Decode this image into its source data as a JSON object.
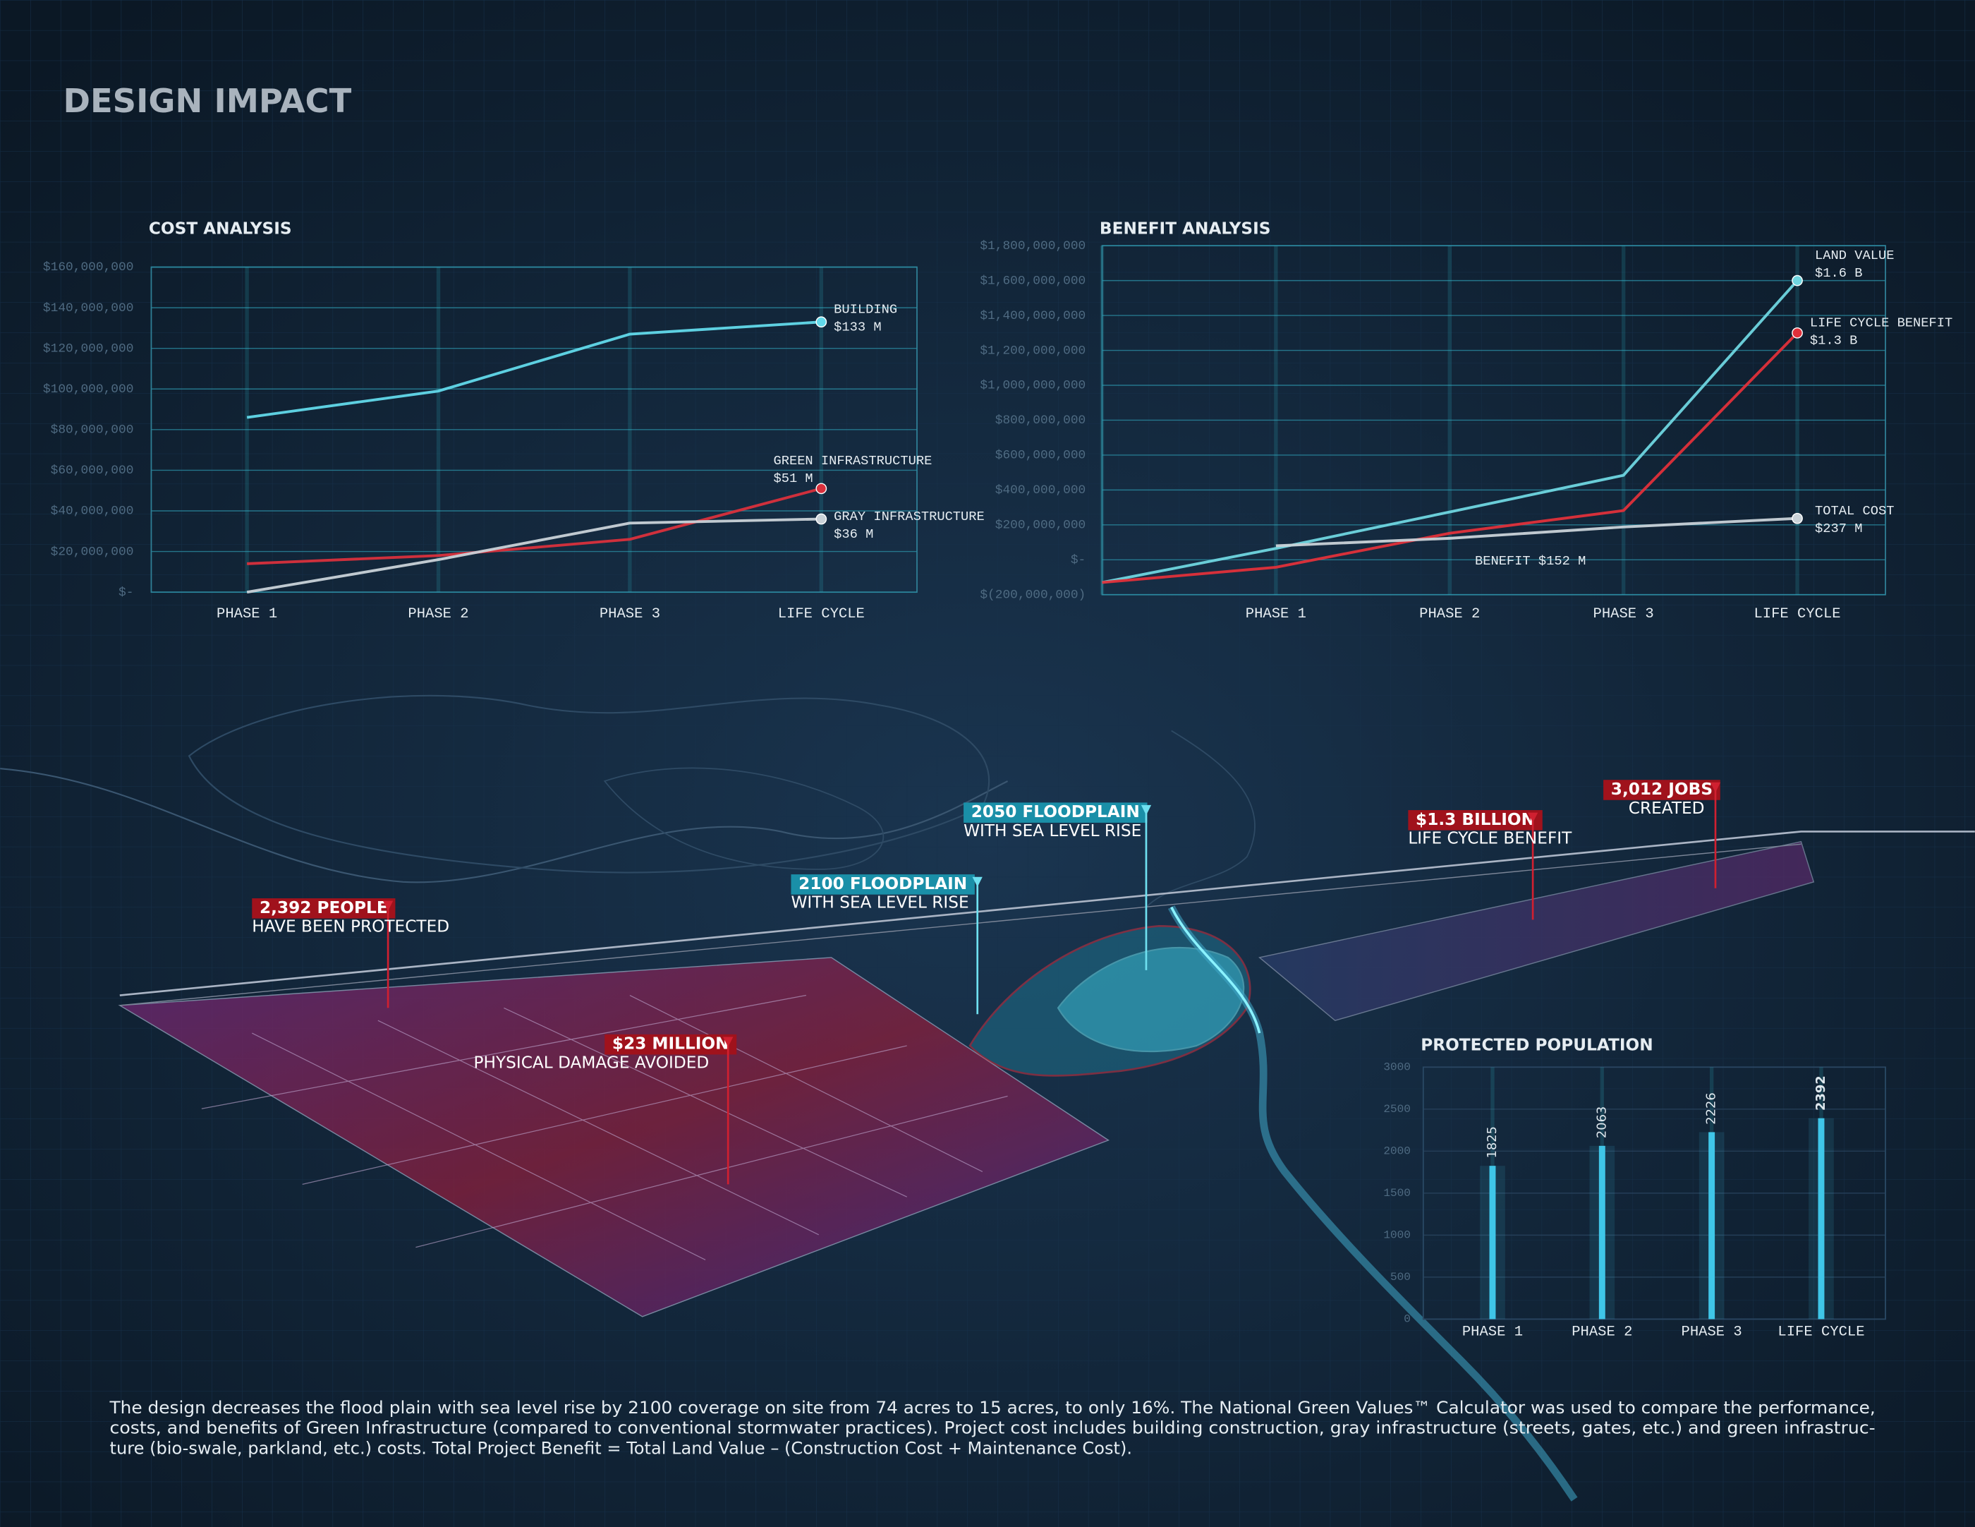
{
  "title": "DESIGN IMPACT",
  "chart_data": [
    {
      "type": "line",
      "title": "COST ANALYSIS",
      "categories": [
        "PHASE 1",
        "PHASE 2",
        "PHASE 3",
        "LIFE CYCLE"
      ],
      "series": [
        {
          "name": "BUILDING",
          "color": "#62d9ea",
          "values": [
            86000000,
            99000000,
            127000000,
            133000000
          ],
          "value_labels": [
            null,
            null,
            null,
            "$133 M"
          ]
        },
        {
          "name": "GREEN INFRASTRUCTURE",
          "color": "#d9303c",
          "values": [
            14000000,
            18000000,
            26000000,
            51000000
          ],
          "value_labels": [
            null,
            null,
            null,
            "$51 M"
          ]
        },
        {
          "name": "GRAY INFRASTRUCTURE",
          "color": "#c9d2d8",
          "values": [
            0,
            16000000,
            34000000,
            36000000
          ],
          "value_labels": [
            null,
            null,
            null,
            "$36 M"
          ]
        }
      ],
      "ylim": [
        0,
        160000000
      ],
      "yticks": [
        {
          "value": 0,
          "label": "$-"
        },
        {
          "value": 20000000,
          "label": "$20,000,000"
        },
        {
          "value": 40000000,
          "label": "$40,000,000"
        },
        {
          "value": 60000000,
          "label": "$60,000,000"
        },
        {
          "value": 80000000,
          "label": "$80,000,000"
        },
        {
          "value": 100000000,
          "label": "$100,000,000"
        },
        {
          "value": 120000000,
          "label": "$120,000,000"
        },
        {
          "value": 140000000,
          "label": "$140,000,000"
        },
        {
          "value": 160000000,
          "label": "$160,000,000"
        }
      ],
      "grid": true
    },
    {
      "type": "line",
      "title": "BENEFIT ANALYSIS",
      "categories": [
        null,
        "PHASE 1",
        "PHASE 2",
        "PHASE 3",
        "LIFE CYCLE"
      ],
      "series": [
        {
          "name": "LAND VALUE",
          "color": "#6fd6e0",
          "values": [
            -130000000,
            65000000,
            274000000,
            484000000,
            1600000000
          ],
          "value_labels": [
            null,
            null,
            null,
            null,
            "$1.6 B"
          ]
        },
        {
          "name": "LIFE CYCLE BENEFIT",
          "color": "#e0303a",
          "values": [
            -130000000,
            -43000000,
            152000000,
            282000000,
            1300000000
          ],
          "value_labels": [
            null,
            null,
            "BENEFIT $152 M",
            null,
            "$1.3 B"
          ]
        },
        {
          "name": "TOTAL COST",
          "color": "#c9d2d8",
          "values": [
            null,
            80000000,
            123000000,
            188000000,
            237000000
          ],
          "value_labels": [
            null,
            null,
            null,
            null,
            "$237 M"
          ]
        }
      ],
      "ylim": [
        -200000000,
        1800000000
      ],
      "yticks": [
        {
          "value": -200000000,
          "label": "$(200,000,000)"
        },
        {
          "value": 0,
          "label": "$-"
        },
        {
          "value": 200000000,
          "label": "$200,000,000"
        },
        {
          "value": 400000000,
          "label": "$400,000,000"
        },
        {
          "value": 600000000,
          "label": "$600,000,000"
        },
        {
          "value": 800000000,
          "label": "$800,000,000"
        },
        {
          "value": 1000000000,
          "label": "$1,000,000,000"
        },
        {
          "value": 1200000000,
          "label": "$1,200,000,000"
        },
        {
          "value": 1400000000,
          "label": "$1,400,000,000"
        },
        {
          "value": 1600000000,
          "label": "$1,600,000,000"
        },
        {
          "value": 1800000000,
          "label": "$1,800,000,000"
        }
      ],
      "grid": true
    },
    {
      "type": "bar",
      "title": "PROTECTED POPULATION",
      "categories": [
        "PHASE 1",
        "PHASE 2",
        "PHASE 3",
        "LIFE CYCLE"
      ],
      "values": [
        1825,
        2063,
        2226,
        2392
      ],
      "color": "#3fc6e8",
      "ylim": [
        0,
        3000
      ],
      "yticks": [
        0,
        500,
        1000,
        1500,
        2000,
        2500,
        3000
      ],
      "grid": true
    }
  ],
  "callouts": [
    {
      "headline": "2,392 PEOPLE",
      "text": "HAVE BEEN PROTECTED"
    },
    {
      "headline": "$23 MILLION",
      "text": "PHYSICAL DAMAGE AVOIDED"
    },
    {
      "headline": "2100 FLOODPLAIN",
      "text": "WITH SEA LEVEL RISE"
    },
    {
      "headline": "2050 FLOODPLAIN",
      "text": "WITH SEA LEVEL RISE"
    },
    {
      "headline": "$1.3 BILLION",
      "text": "LIFE CYCLE BENEFIT"
    },
    {
      "headline": "3,012 JOBS",
      "text": "CREATED"
    }
  ],
  "description": [
    "The design decreases the flood plain with sea level rise by 2100 coverage on site from 74 acres to 15 acres, to only 16%. The National Green Values™ Calculator was used to compare the performance,",
    "costs, and benefits of Green Infrastructure (compared to conventional stormwater practices). Project cost includes building construction, gray infrastructure (streets, gates, etc.) and green infrastruc-",
    "ture (bio-swale, parkland, etc.) costs.  Total Project Benefit = Total Land Value – (Construction Cost + Maintenance Cost)."
  ]
}
